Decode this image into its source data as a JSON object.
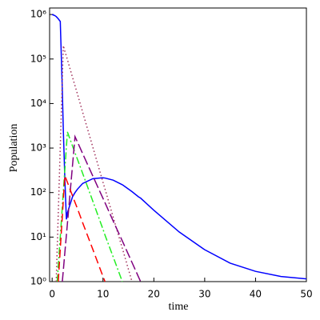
{
  "chart_data": {
    "type": "line",
    "xlabel": "time",
    "ylabel": "Population",
    "log_y": true,
    "xlim": [
      -0.5,
      50
    ],
    "ylim": [
      1,
      1400000
    ],
    "xticks": [
      0,
      10,
      20,
      30,
      40,
      50
    ],
    "yticks": [
      {
        "value": 1,
        "label": "10⁰"
      },
      {
        "value": 10,
        "label": "10¹"
      },
      {
        "value": 100,
        "label": "10²"
      },
      {
        "value": 1000,
        "label": "10³"
      },
      {
        "value": 10000,
        "label": "10⁴"
      },
      {
        "value": 100000,
        "label": "10⁵"
      },
      {
        "value": 1000000,
        "label": "10⁶"
      }
    ],
    "x": [
      0,
      0.5,
      0.8,
      1,
      1.2,
      1.6,
      2,
      2.2,
      2.5,
      2.8,
      3,
      4,
      4.5,
      5,
      6,
      8,
      10,
      10.4,
      12,
      13.8,
      14,
      15.7,
      17,
      17.4,
      20,
      25,
      30,
      35,
      40,
      45,
      50
    ],
    "series": [
      {
        "color": "#0000ff",
        "dash": "",
        "values": [
          1000000,
          950000,
          900000,
          850000,
          800000,
          700000,
          20000,
          2500,
          200,
          25,
          35,
          80,
          100,
          120,
          160,
          205,
          215,
          212,
          190,
          150,
          145,
          105,
          80,
          75,
          40,
          13,
          5.2,
          2.6,
          1.7,
          1.3,
          1.15
        ]
      },
      {
        "color": "#a0305a",
        "dash": "1.5 3",
        "values": [
          null,
          null,
          1,
          5.7,
          33,
          1070,
          34000,
          200000,
          150000,
          116000,
          97000,
          39000,
          25000,
          16000,
          6400,
          1050,
          170,
          120,
          28,
          5.6,
          4.7,
          1,
          null,
          null,
          null,
          null,
          null,
          null,
          null,
          null,
          null
        ]
      },
      {
        "color": "#22ee22",
        "dash": "9 3 2 3",
        "values": [
          null,
          null,
          null,
          1,
          2.2,
          10,
          48,
          105,
          330,
          1050,
          2300,
          1120,
          780,
          550,
          270,
          64,
          15,
          11,
          3.6,
          1,
          null,
          null,
          null,
          null,
          null,
          null,
          null,
          null,
          null,
          null,
          null
        ]
      },
      {
        "color": "#800080",
        "dash": "12 4",
        "values": [
          null,
          null,
          null,
          null,
          null,
          null,
          1,
          1.8,
          4.5,
          11,
          20,
          400,
          1800,
          1350,
          750,
          235,
          74,
          59,
          23,
          8.2,
          7.3,
          2.7,
          1.26,
          1,
          null,
          null,
          null,
          null,
          null,
          null,
          null
        ]
      },
      {
        "color": "#ff0000",
        "dash": "10 5",
        "values": [
          null,
          null,
          null,
          null,
          1,
          5.4,
          29,
          68,
          240,
          195,
          170,
          85,
          60,
          43,
          21,
          5.3,
          1.3,
          1,
          null,
          null,
          null,
          null,
          null,
          null,
          null,
          null,
          null,
          null,
          null,
          null,
          null
        ]
      }
    ]
  }
}
